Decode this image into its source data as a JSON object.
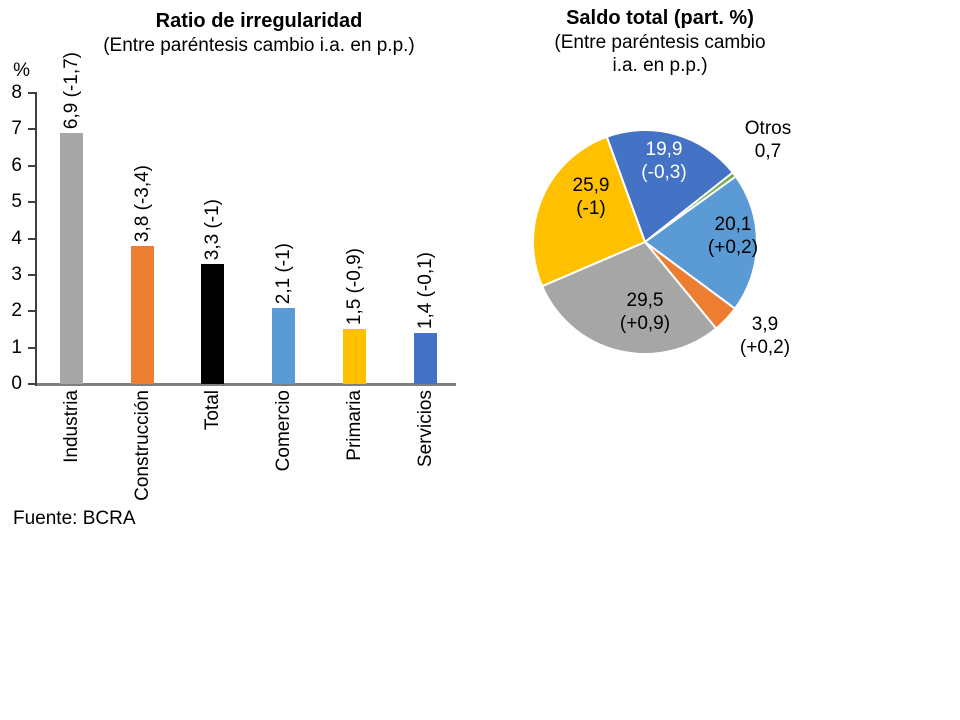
{
  "source": "Fuente: BCRA",
  "chart_data": [
    {
      "type": "bar",
      "title": "Ratio de irregularidad",
      "subtitle": "(Entre paréntesis cambio i.a. en p.p.)",
      "ylabel": "%",
      "ylim": [
        0,
        8
      ],
      "yticks": [
        0,
        1,
        2,
        3,
        4,
        5,
        6,
        7,
        8
      ],
      "grid": "off",
      "categories": [
        "Industria",
        "Construcción",
        "Total",
        "Comercio",
        "Primaria",
        "Servicios"
      ],
      "values": [
        6.9,
        3.8,
        3.3,
        2.1,
        1.5,
        1.4
      ],
      "bar_labels": [
        "6,9 (-1,7)",
        "3,8 (-3,4)",
        "3,3 (-1)",
        "2,1 (-1)",
        "1,5 (-0,9)",
        "1,4 (-0,1)"
      ],
      "bar_colors": [
        "#A6A6A6",
        "#ED7D31",
        "#000000",
        "#5B9BD5",
        "#FFC000",
        "#4472C4"
      ]
    },
    {
      "type": "pie",
      "title": "Saldo total (part. %)",
      "subtitle": "(Entre paréntesis cambio\ni.a. en p.p.)",
      "start_angle_deg": -20,
      "direction": "clockwise",
      "slices": [
        {
          "value": 19.9,
          "change": "-0,3",
          "color": "#4472C4",
          "label_line1": "19,9",
          "label_line2": "(-0,3)",
          "label_color": "#FFFFFF",
          "label_position": "inside"
        },
        {
          "name": "Otros",
          "value": 0.7,
          "color": "#70AD47",
          "label_line1": "Otros",
          "label_line2": "0,7",
          "label_color": "#000000",
          "label_position": "outside"
        },
        {
          "value": 20.1,
          "change": "+0,2",
          "color": "#5B9BD5",
          "label_line1": "20,1",
          "label_line2": "(+0,2)",
          "label_color": "#000000",
          "label_position": "inside"
        },
        {
          "value": 3.9,
          "change": "+0,2",
          "color": "#ED7D31",
          "label_line1": "3,9",
          "label_line2": "(+0,2)",
          "label_color": "#000000",
          "label_position": "outside"
        },
        {
          "value": 29.5,
          "change": "+0,9",
          "color": "#A6A6A6",
          "label_line1": "29,5",
          "label_line2": "(+0,9)",
          "label_color": "#000000",
          "label_position": "inside"
        },
        {
          "value": 25.9,
          "change": "-1",
          "color": "#FFC000",
          "label_line1": "25,9",
          "label_line2": "(-1)",
          "label_color": "#000000",
          "label_position": "inside"
        }
      ]
    }
  ]
}
